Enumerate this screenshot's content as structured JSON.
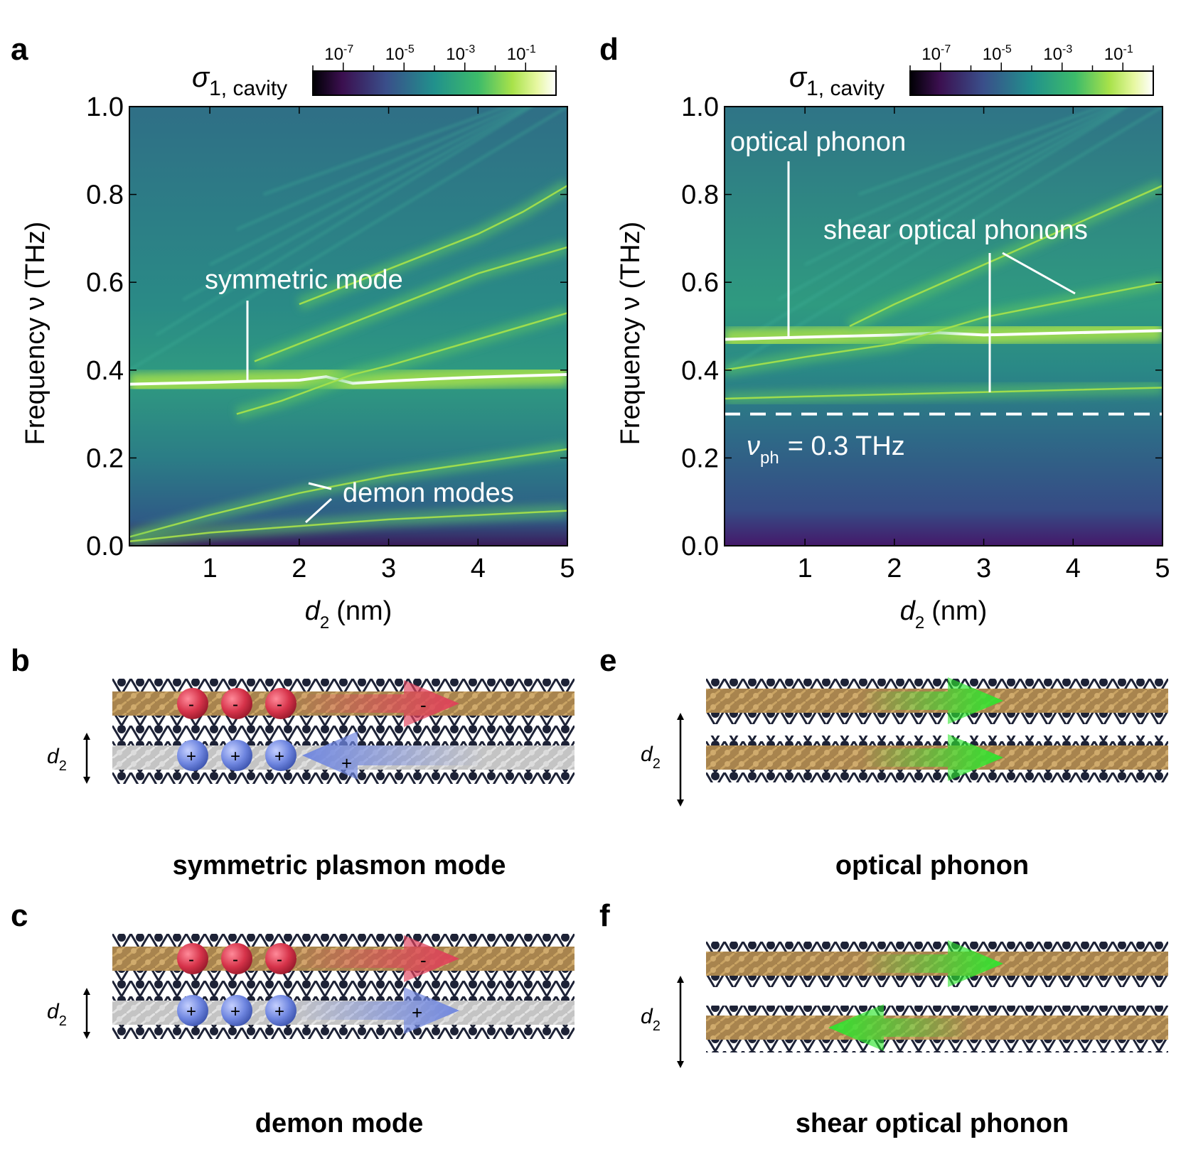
{
  "colors": {
    "viridis": [
      "#000004",
      "#440154",
      "#3b528b",
      "#21918c",
      "#5ec962",
      "#a8e24a",
      "#fdfee0",
      "#ffffff"
    ],
    "bg_teal": "#2a7f86",
    "positive_charge": "#6f86e0",
    "negative_charge": "#d6334a",
    "arrow_red": "#e0405a",
    "arrow_blue": "#6f86e0",
    "arrow_green": "#2ee62e",
    "atom_dark": "#1d2236",
    "atom_gold": "#b08a4e",
    "atom_gray": "#c8c8c8"
  },
  "icons": [
    "red-electron-ball",
    "blue-hole-ball",
    "double-headed-arrow"
  ],
  "chart_data": [
    {
      "panel": "a",
      "type": "heatmap",
      "xlabel": "d",
      "xlabel_sub": "2",
      "xlabel_unit": "(nm)",
      "ylabel": "Frequency ν (THz)",
      "xlim": [
        0.1,
        5
      ],
      "ylim": [
        0.0,
        1.0
      ],
      "x_ticks": [
        "1",
        "2",
        "3",
        "4",
        "5"
      ],
      "x_tick_values": [
        1,
        2,
        3,
        4,
        5
      ],
      "y_ticks": [
        "0.0",
        "0.2",
        "0.4",
        "0.6",
        "0.8",
        "1.0"
      ],
      "y_tick_values": [
        0.0,
        0.2,
        0.4,
        0.6,
        0.8,
        1.0
      ],
      "colorbar": {
        "label": "σ",
        "label_sub": "1, cavity",
        "scale": "log",
        "ticks": [
          "10",
          "10",
          "10",
          "10"
        ],
        "tick_exponents": [
          "-7",
          "-5",
          "-3",
          "-1"
        ],
        "tick_values": [
          1e-07,
          1e-05,
          0.001,
          0.1
        ],
        "range": [
          1e-08,
          1.0
        ]
      },
      "modes": [
        {
          "kind": "symmetric",
          "x": [
            0.1,
            1.0,
            1.5,
            2.0,
            2.3,
            2.6,
            3.0,
            3.5,
            4.0,
            4.5,
            5.0
          ],
          "y": [
            0.368,
            0.372,
            0.375,
            0.377,
            0.385,
            0.37,
            0.375,
            0.38,
            0.384,
            0.387,
            0.39
          ]
        },
        {
          "kind": "crossing",
          "x": [
            1.3,
            1.8,
            2.2,
            2.6,
            3.0,
            3.5,
            4.0,
            4.5,
            5.0
          ],
          "y": [
            0.3,
            0.33,
            0.36,
            0.39,
            0.41,
            0.44,
            0.47,
            0.5,
            0.53
          ]
        },
        {
          "kind": "upper",
          "x": [
            1.5,
            2.0,
            2.5,
            3.0,
            3.5,
            4.0,
            4.5,
            5.0
          ],
          "y": [
            0.42,
            0.46,
            0.5,
            0.54,
            0.58,
            0.62,
            0.65,
            0.68
          ]
        },
        {
          "kind": "upper",
          "x": [
            2.0,
            2.5,
            3.0,
            3.5,
            4.0,
            4.5,
            5.0
          ],
          "y": [
            0.55,
            0.59,
            0.63,
            0.67,
            0.71,
            0.76,
            0.82
          ]
        },
        {
          "kind": "demon",
          "x": [
            0.1,
            1.0,
            2.0,
            3.0,
            4.0,
            5.0
          ],
          "y": [
            0.02,
            0.07,
            0.12,
            0.16,
            0.19,
            0.22
          ]
        },
        {
          "kind": "demon",
          "x": [
            0.1,
            1.0,
            2.0,
            3.0,
            4.0,
            5.0
          ],
          "y": [
            0.01,
            0.03,
            0.045,
            0.06,
            0.07,
            0.08
          ]
        }
      ],
      "annotations": {
        "symmetric": "symmetric mode",
        "demon": "demon modes"
      }
    },
    {
      "panel": "d",
      "type": "heatmap",
      "xlabel": "d",
      "xlabel_sub": "2",
      "xlabel_unit": "(nm)",
      "ylabel": "Frequency ν (THz)",
      "xlim": [
        0.1,
        5
      ],
      "ylim": [
        0.0,
        1.0
      ],
      "x_ticks": [
        "1",
        "2",
        "3",
        "4",
        "5"
      ],
      "x_tick_values": [
        1,
        2,
        3,
        4,
        5
      ],
      "y_ticks": [
        "0.0",
        "0.2",
        "0.4",
        "0.6",
        "0.8",
        "1.0"
      ],
      "y_tick_values": [
        0.0,
        0.2,
        0.4,
        0.6,
        0.8,
        1.0
      ],
      "colorbar": {
        "label": "σ",
        "label_sub": "1, cavity",
        "scale": "log",
        "ticks": [
          "10",
          "10",
          "10",
          "10"
        ],
        "tick_exponents": [
          "-7",
          "-5",
          "-3",
          "-1"
        ],
        "tick_values": [
          1e-07,
          1e-05,
          0.001,
          0.1
        ],
        "range": [
          1e-08,
          1.0
        ]
      },
      "modes": [
        {
          "kind": "optical",
          "x": [
            0.1,
            1.0,
            2.0,
            2.5,
            3.0,
            4.0,
            5.0
          ],
          "y": [
            0.47,
            0.475,
            0.48,
            0.485,
            0.48,
            0.485,
            0.49
          ]
        },
        {
          "kind": "shear",
          "x": [
            0.1,
            1.0,
            2.0,
            2.5,
            3.0,
            4.0,
            5.0
          ],
          "y": [
            0.4,
            0.43,
            0.46,
            0.49,
            0.52,
            0.56,
            0.6
          ]
        },
        {
          "kind": "shear",
          "x": [
            0.1,
            1.0,
            2.0,
            3.0,
            4.0,
            5.0
          ],
          "y": [
            0.335,
            0.34,
            0.345,
            0.35,
            0.355,
            0.36
          ]
        },
        {
          "kind": "shear",
          "x": [
            1.5,
            2.0,
            3.0,
            4.0,
            5.0
          ],
          "y": [
            0.5,
            0.55,
            0.64,
            0.73,
            0.82
          ]
        }
      ],
      "cutoff": 0.3,
      "annotations": {
        "optical": "optical phonon",
        "shear": "shear optical phonons",
        "cutoff_symbol": "ν",
        "cutoff_sub": "ph",
        "cutoff_text": "= 0.3 THz"
      }
    }
  ],
  "panels": {
    "a": "a",
    "b": "b",
    "c": "c",
    "d": "d",
    "e": "e",
    "f": "f"
  },
  "schematics": {
    "b": {
      "caption": "symmetric plasmon mode",
      "d_label": "d",
      "d_sub": "2",
      "neg": "-",
      "pos": "+"
    },
    "c": {
      "caption": "demon mode",
      "d_label": "d",
      "d_sub": "2",
      "neg": "-",
      "pos": "+"
    },
    "e": {
      "caption": "optical phonon",
      "d_label": "d",
      "d_sub": "2"
    },
    "f": {
      "caption": "shear optical phonon",
      "d_label": "d",
      "d_sub": "2"
    }
  }
}
